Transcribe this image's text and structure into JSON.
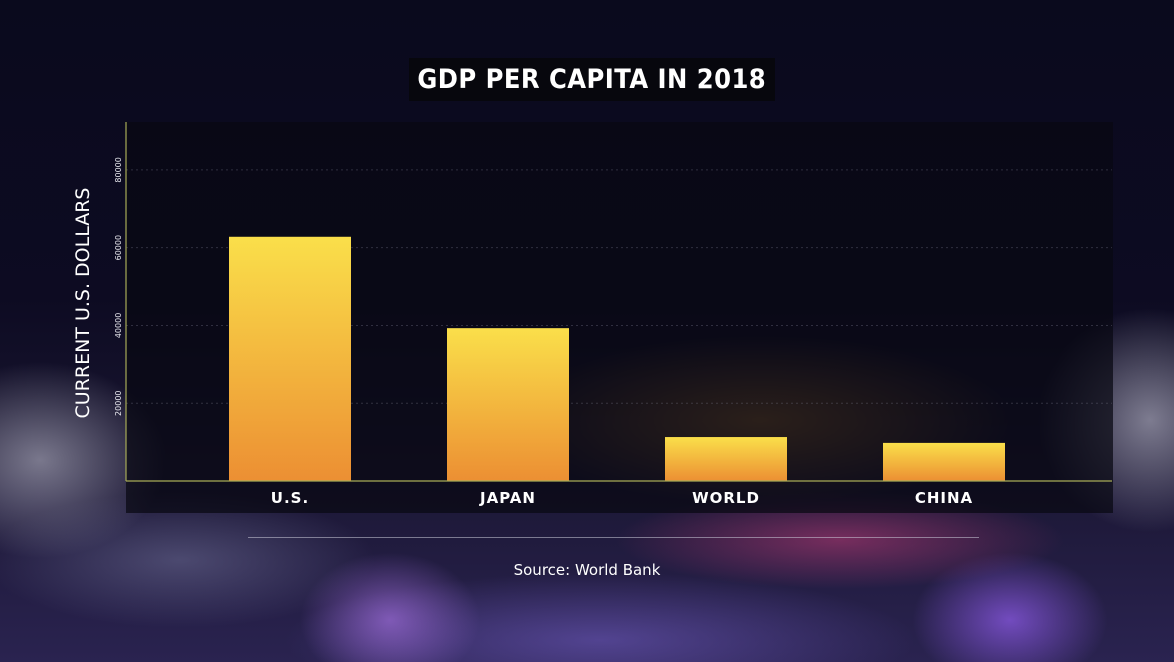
{
  "chart_data": {
    "type": "bar",
    "title": "GDP PER CAPITA IN 2018",
    "ylabel": "CURRENT U.S. DOLLARS",
    "xlabel": "",
    "categories": [
      "U.S.",
      "JAPAN",
      "WORLD",
      "CHINA"
    ],
    "values": [
      62800,
      39300,
      11300,
      9800
    ],
    "ylim": [
      0,
      90000
    ],
    "yticks": [
      "20000",
      "40000",
      "60000",
      "80000"
    ],
    "grid": true,
    "legend": "none"
  },
  "source": "Source: World Bank",
  "colors": {
    "bar_top": "#fadf4a",
    "bar_bottom": "#ec8f33",
    "axis": "#a7ab57",
    "background": "#0b0b1c"
  }
}
